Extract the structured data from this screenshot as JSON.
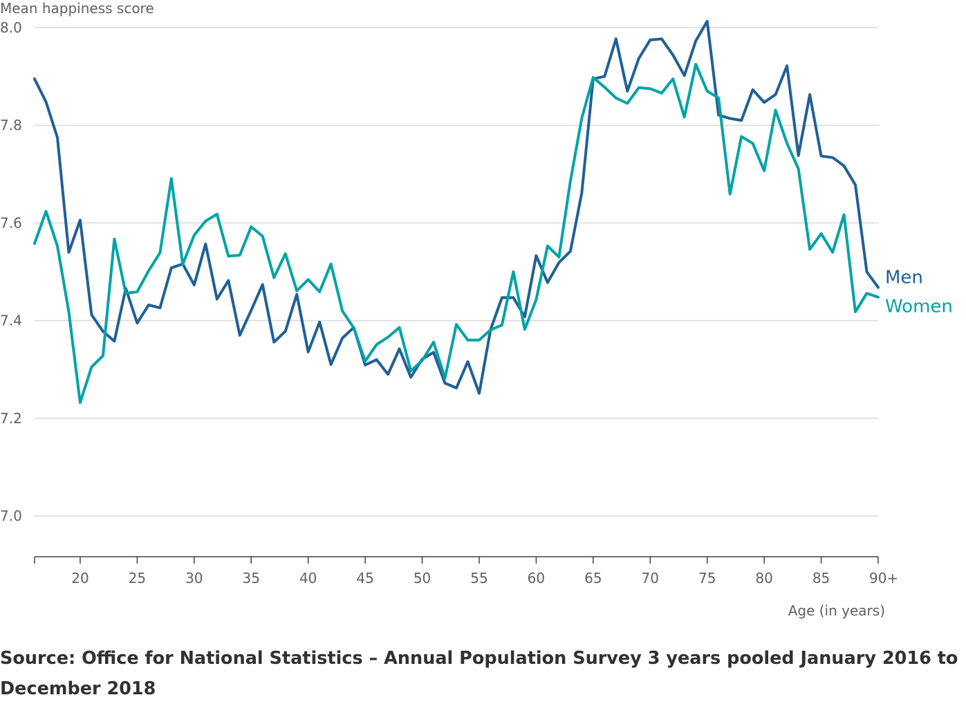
{
  "colors": {
    "men": "#206095",
    "women": "#00a3a6",
    "grid": "#d9d9d9",
    "axis": "#414042",
    "text": "#616161"
  },
  "source": "Source: Office for National Statistics – Annual Population Survey 3 years pooled January 2016 to December 2018",
  "chart_data": {
    "type": "line",
    "ylabel": "Mean happiness score",
    "xlabel": "Age (in years)",
    "ylim": [
      6.9,
      8.05
    ],
    "yticks": [
      7.0,
      7.2,
      7.4,
      7.6,
      7.8,
      8.0
    ],
    "ytick_labels": [
      "7.0",
      "7.2",
      "7.4",
      "7.6",
      "7.8",
      "8.0"
    ],
    "xlim": [
      16,
      90
    ],
    "xticks": [
      20,
      25,
      30,
      35,
      40,
      45,
      50,
      55,
      60,
      65,
      70,
      75,
      80,
      85,
      90
    ],
    "xtick_labels": [
      "20",
      "25",
      "30",
      "35",
      "40",
      "45",
      "50",
      "55",
      "60",
      "65",
      "70",
      "75",
      "80",
      "85",
      "90+"
    ],
    "grid": true,
    "x": [
      16,
      17,
      18,
      19,
      20,
      21,
      22,
      23,
      24,
      25,
      26,
      27,
      28,
      29,
      30,
      31,
      32,
      33,
      34,
      35,
      36,
      37,
      38,
      39,
      40,
      41,
      42,
      43,
      44,
      45,
      46,
      47,
      48,
      49,
      50,
      51,
      52,
      53,
      54,
      55,
      56,
      57,
      58,
      59,
      60,
      61,
      62,
      63,
      64,
      65,
      66,
      67,
      68,
      69,
      70,
      71,
      72,
      73,
      74,
      75,
      76,
      77,
      78,
      79,
      80,
      81,
      82,
      83,
      84,
      85,
      86,
      87,
      88,
      89,
      90
    ],
    "series": [
      {
        "name": "Men",
        "values": [
          7.895,
          7.848,
          7.775,
          7.54,
          7.606,
          7.412,
          7.378,
          7.358,
          7.466,
          7.395,
          7.432,
          7.426,
          7.508,
          7.516,
          7.473,
          7.557,
          7.444,
          7.482,
          7.37,
          7.421,
          7.474,
          7.356,
          7.378,
          7.454,
          7.336,
          7.397,
          7.31,
          7.364,
          7.386,
          7.309,
          7.32,
          7.29,
          7.342,
          7.284,
          7.321,
          7.335,
          7.272,
          7.262,
          7.316,
          7.251,
          7.382,
          7.447,
          7.447,
          7.408,
          7.533,
          7.478,
          7.519,
          7.542,
          7.662,
          7.895,
          7.9,
          7.977,
          7.87,
          7.937,
          7.975,
          7.977,
          7.944,
          7.902,
          7.973,
          8.013,
          7.821,
          7.814,
          7.81,
          7.873,
          7.847,
          7.863,
          7.922,
          7.738,
          7.863,
          7.737,
          7.734,
          7.717,
          7.678,
          7.5,
          7.468
        ]
      },
      {
        "name": "Women",
        "values": [
          7.558,
          7.624,
          7.553,
          7.418,
          7.232,
          7.305,
          7.328,
          7.567,
          7.456,
          7.459,
          7.502,
          7.539,
          7.691,
          7.515,
          7.575,
          7.604,
          7.618,
          7.532,
          7.534,
          7.592,
          7.573,
          7.488,
          7.537,
          7.461,
          7.484,
          7.459,
          7.516,
          7.42,
          7.385,
          7.317,
          7.351,
          7.366,
          7.386,
          7.297,
          7.318,
          7.356,
          7.282,
          7.392,
          7.36,
          7.36,
          7.381,
          7.391,
          7.5,
          7.382,
          7.443,
          7.553,
          7.53,
          7.686,
          7.815,
          7.898,
          7.878,
          7.856,
          7.845,
          7.877,
          7.875,
          7.866,
          7.895,
          7.817,
          7.925,
          7.87,
          7.856,
          7.659,
          7.777,
          7.763,
          7.707,
          7.831,
          7.763,
          7.711,
          7.546,
          7.578,
          7.54,
          7.617,
          7.418,
          7.456,
          7.448
        ]
      }
    ]
  }
}
